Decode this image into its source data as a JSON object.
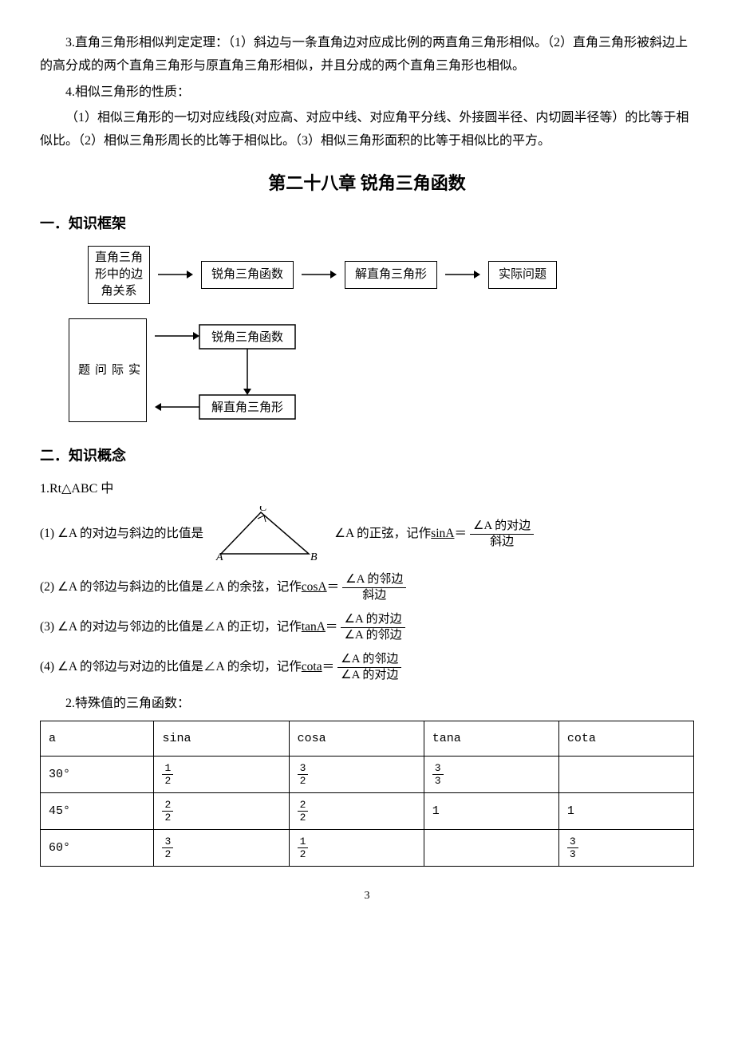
{
  "paragraphs": {
    "p1": "3.直角三角形相似判定定理：（1）斜边与一条直角边对应成比例的两直角三角形相似。（2）直角三角形被斜边上的高分成的两个直角三角形与原直角三角形相似，并且分成的两个直角三角形也相似。",
    "p2": "4.相似三角形的性质：",
    "p3": "（1）相似三角形的一切对应线段(对应高、对应中线、对应角平分线、外接圆半径、内切圆半径等）的比等于相似比。（2）相似三角形周长的比等于相似比。（3）相似三角形面积的比等于相似比的平方。"
  },
  "chapter_title": "第二十八章  锐角三角函数",
  "section1": "一．知识框架",
  "section2": "二．知识概念",
  "flowchart1": {
    "boxes": [
      "直角三角\n形中的边\n角关系",
      "锐角三角函数",
      "解直角三角形",
      "实际问题"
    ]
  },
  "flowchart2": {
    "left": "实\n际\n问\n题",
    "top": "锐角三角函数",
    "bottom": "解直角三角形"
  },
  "def_header": "1.Rt△ABC 中",
  "definitions": [
    {
      "lead": "(1) ∠A 的对边与斜边的比值是",
      "mid_has_triangle": true,
      "after": "∠A 的正弦，记作 ",
      "fn": "sinA",
      "eq": "＝",
      "num": "∠A 的对边",
      "den": "斜边"
    },
    {
      "lead": "(2) ∠A 的邻边与斜边的比值是∠A 的余弦，记作 ",
      "fn": "cosA",
      "eq": "＝",
      "num": "∠A 的邻边",
      "den": "斜边"
    },
    {
      "lead": "(3) ∠A 的对边与邻边的比值是∠A 的正切，记作 ",
      "fn": "tanA",
      "eq": "＝",
      "num": "∠A 的对边",
      "den": "∠A 的邻边"
    },
    {
      "lead": "(4) ∠A 的邻边与对边的比值是∠A 的余切，记作 ",
      "fn": "cota",
      "eq": "＝",
      "num": "∠A 的邻边",
      "den": "∠A 的对边"
    }
  ],
  "table_title": "2.特殊值的三角函数：",
  "table": {
    "headers": [
      "a",
      "sina",
      "cosa",
      "tana",
      "cota"
    ],
    "rows": [
      {
        "angle": "30°",
        "cells": [
          {
            "n": "1",
            "d": "2"
          },
          {
            "n": "3",
            "d": "2"
          },
          {
            "n": "3",
            "d": "3"
          },
          null
        ]
      },
      {
        "angle": "45°",
        "cells": [
          {
            "n": "2",
            "d": "2"
          },
          {
            "n": "2",
            "d": "2"
          },
          "1",
          "1"
        ]
      },
      {
        "angle": "60°",
        "cells": [
          {
            "n": "3",
            "d": "2"
          },
          {
            "n": "1",
            "d": "2"
          },
          null,
          {
            "n": "3",
            "d": "3"
          }
        ]
      }
    ]
  },
  "triangle_labels": {
    "A": "A",
    "B": "B",
    "C": "C"
  },
  "page_number": "3"
}
